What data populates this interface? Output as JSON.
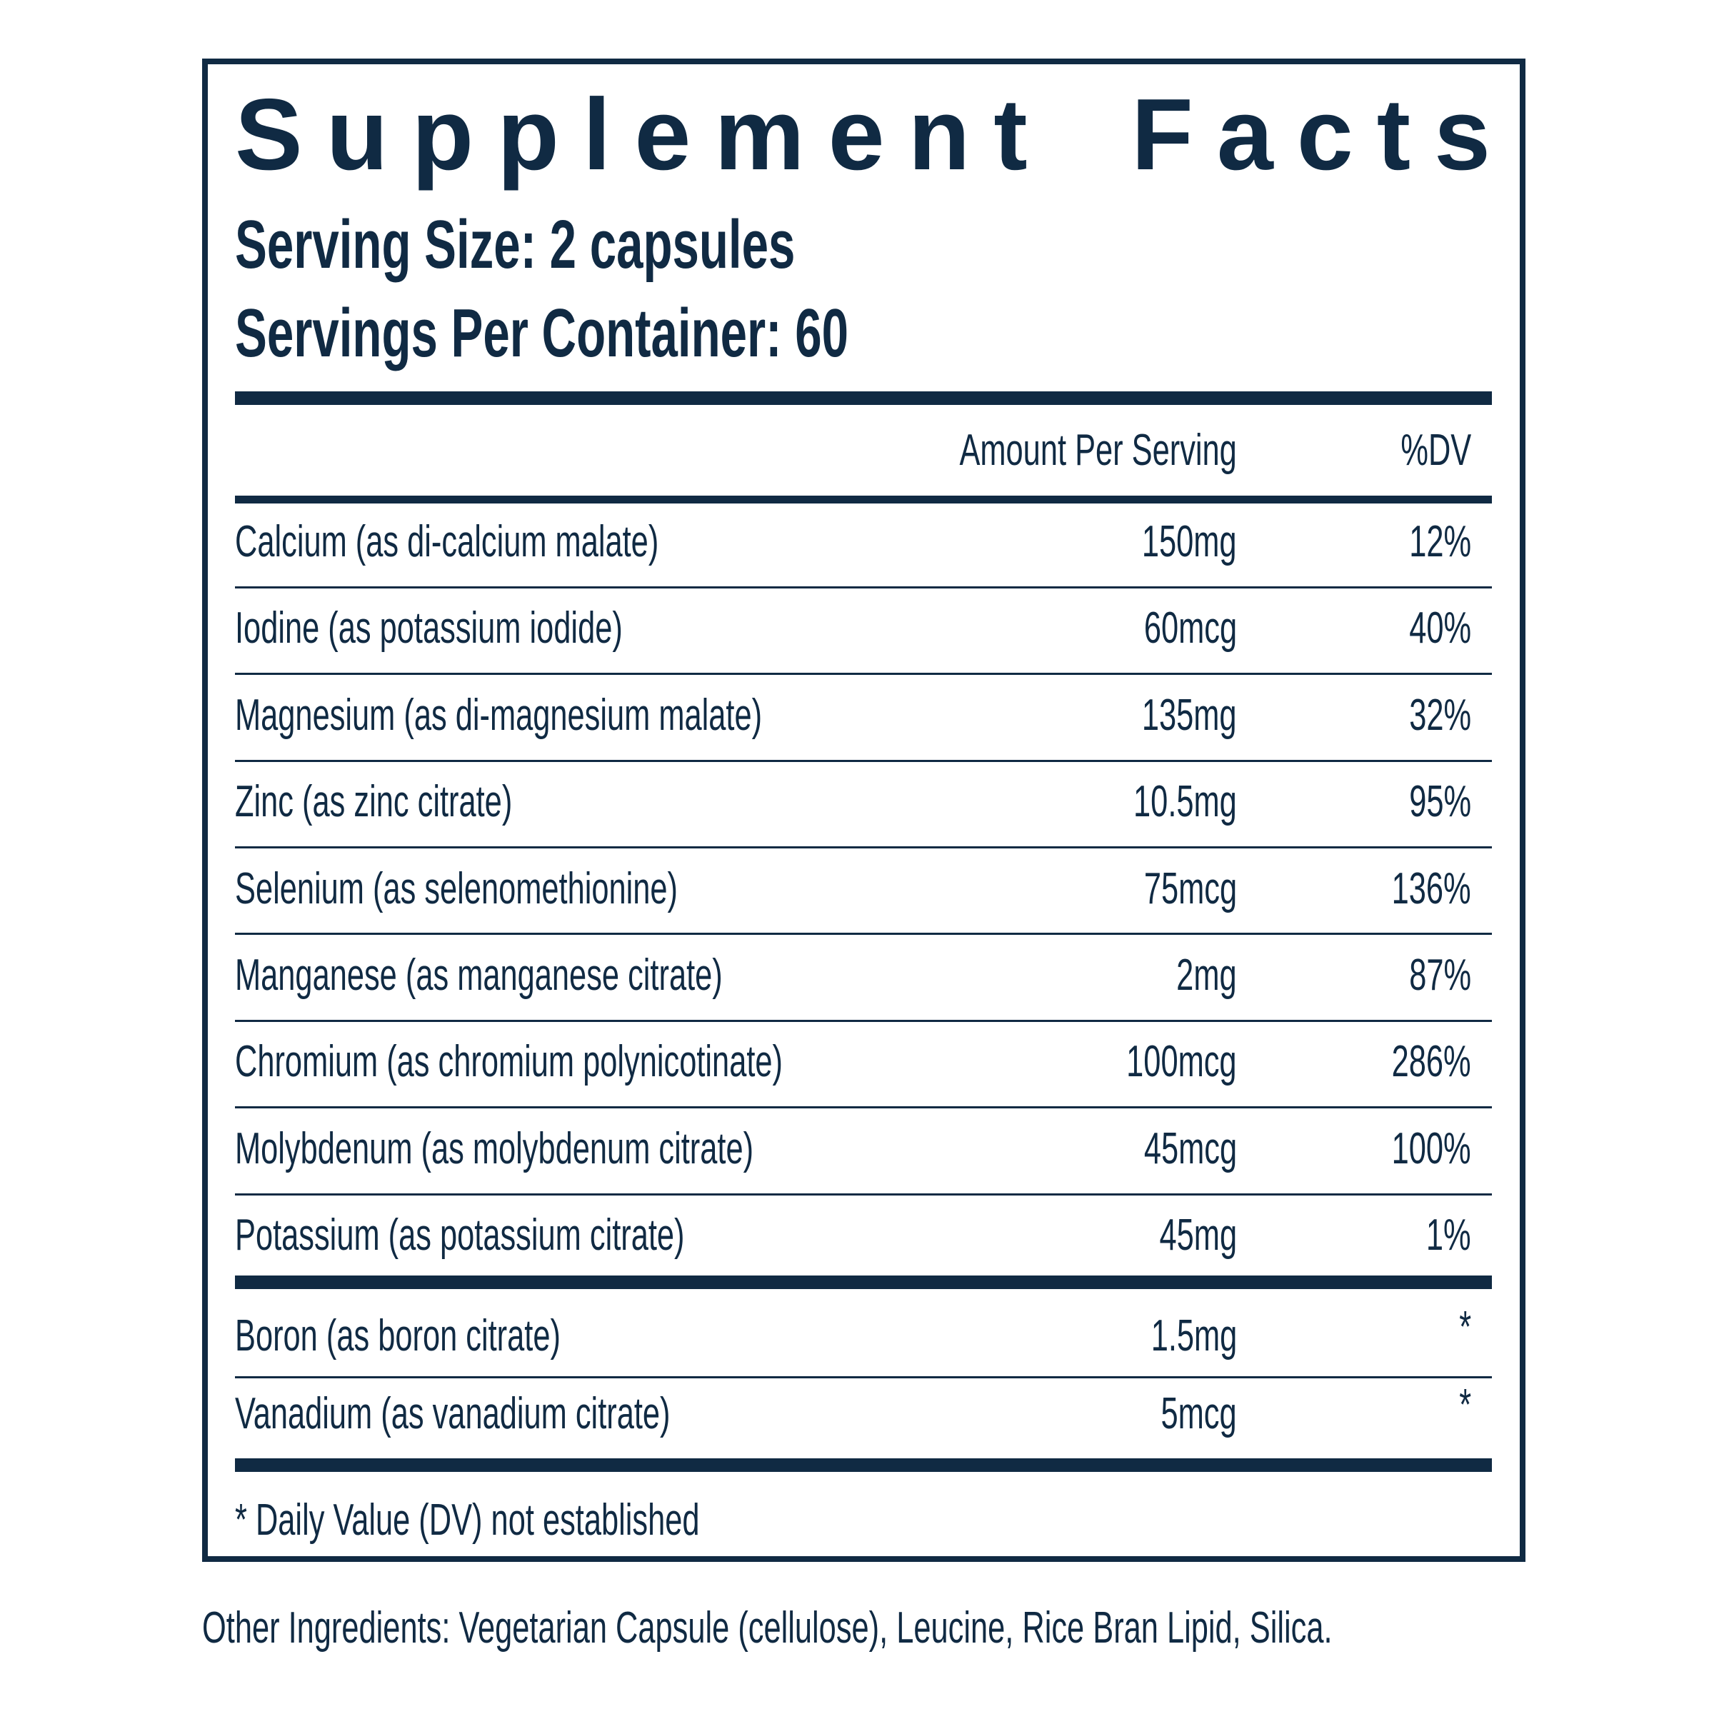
{
  "header": {
    "title": "Supplement Facts",
    "serving_size": "Serving Size: 2 capsules",
    "servings_per_container": "Servings Per Container: 60"
  },
  "table": {
    "columns": [
      "Amount Per Serving",
      "%DV"
    ],
    "sections": [
      {
        "rows": [
          [
            "Calcium (as di-calcium malate)",
            "150mg",
            "12%"
          ],
          [
            "Iodine (as potassium iodide)",
            "60mcg",
            "40%"
          ],
          [
            "Magnesium (as di-magnesium malate)",
            "135mg",
            "32%"
          ],
          [
            "Zinc (as zinc citrate)",
            "10.5mg",
            "95%"
          ],
          [
            "Selenium (as selenomethionine)",
            "75mcg",
            "136%"
          ],
          [
            "Manganese (as manganese citrate)",
            "2mg",
            "87%"
          ],
          [
            "Chromium (as chromium polynicotinate)",
            "100mcg",
            "286%"
          ],
          [
            "Molybdenum (as molybdenum citrate)",
            "45mcg",
            "100%"
          ],
          [
            "Potassium (as potassium citrate)",
            "45mg",
            "1%"
          ]
        ]
      },
      {
        "rows": [
          [
            "Boron (as boron citrate)",
            "1.5mg",
            "*"
          ],
          [
            "Vanadium (as vanadium citrate)",
            "5mcg",
            "*"
          ]
        ]
      }
    ]
  },
  "footnote": "* Daily Value (DV) not established",
  "other_ingredients": "Other Ingredients: Vegetarian Capsule (cellulose), Leucine, Rice Bran Lipid, Silica."
}
